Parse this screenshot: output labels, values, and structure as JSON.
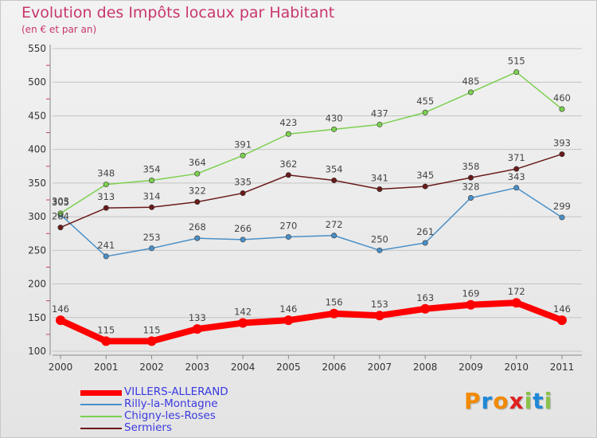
{
  "title": "Evolution des Impôts locaux par Habitant",
  "subtitle": "(en € et par an)",
  "logo": {
    "text": "Proxiti",
    "letters": [
      "P",
      "r",
      "o",
      "x",
      "i",
      "t",
      "i"
    ],
    "colors": [
      "#f28a00",
      "#1e88d8",
      "#f28a00",
      "#e02020",
      "#8bc34a",
      "#1e88d8",
      "#8bc34a"
    ]
  },
  "chart_data": {
    "type": "line",
    "title": "Evolution des Impôts locaux par Habitant",
    "subtitle": "(en € et par an)",
    "xlabel": "",
    "ylabel": "",
    "categories": [
      "2000",
      "2001",
      "2002",
      "2003",
      "2004",
      "2005",
      "2006",
      "2007",
      "2008",
      "2009",
      "2010",
      "2011"
    ],
    "ylim": [
      100,
      550
    ],
    "yticks": [
      100,
      150,
      200,
      250,
      300,
      350,
      400,
      450,
      500,
      550
    ],
    "grid": "horizontal",
    "legend": "bottom-left",
    "series": [
      {
        "name": "VILLERS-ALLERAND",
        "color": "#ff0000",
        "values": [
          146,
          115,
          115,
          133,
          142,
          146,
          156,
          153,
          163,
          169,
          172,
          146
        ],
        "labels": [
          "146",
          "115",
          "115",
          "133",
          "142",
          "146",
          "156",
          "153",
          "163",
          "169",
          "172",
          "146"
        ]
      },
      {
        "name": "Rilly-la-Montagne",
        "color": "#4a90c8",
        "values": [
          303,
          241,
          253,
          268,
          266,
          270,
          272,
          250,
          261,
          328,
          343,
          299
        ],
        "labels": [
          "303",
          "241",
          "253",
          "268",
          "266",
          "270",
          "272",
          "250",
          "261",
          "328",
          "343",
          "299"
        ]
      },
      {
        "name": "Chigny-les-Roses",
        "color": "#7cd050",
        "values": [
          305,
          348,
          354,
          364,
          391,
          423,
          430,
          437,
          455,
          485,
          515,
          460
        ],
        "labels": [
          "305",
          "348",
          "354",
          "364",
          "391",
          "423",
          "430",
          "437",
          "455",
          "485",
          "515",
          "460"
        ]
      },
      {
        "name": "Sermiers",
        "color": "#6a1a1a",
        "values": [
          284,
          313,
          314,
          322,
          335,
          362,
          354,
          341,
          345,
          358,
          371,
          393
        ],
        "labels": [
          "284",
          "313",
          "314",
          "322",
          "335",
          "362",
          "354",
          "341",
          "345",
          "358",
          "371",
          "393"
        ]
      }
    ]
  }
}
